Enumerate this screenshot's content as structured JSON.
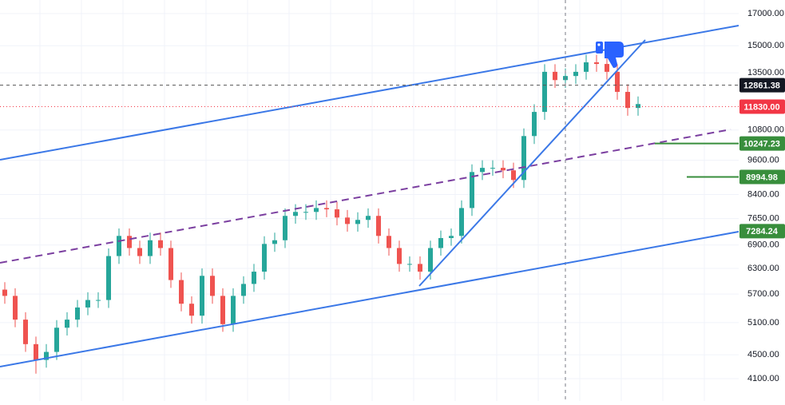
{
  "chart_data": {
    "type": "candlestick",
    "log_scale": true,
    "grid": true,
    "ylim": [
      3758,
      17924
    ],
    "yticks": [
      {
        "value": 17000,
        "label": "17000.00"
      },
      {
        "value": 15000,
        "label": "15000.00"
      },
      {
        "value": 13500,
        "label": "13500.00"
      },
      {
        "value": 10800,
        "label": "10800.00"
      },
      {
        "value": 9600,
        "label": "9600.00"
      },
      {
        "value": 8400,
        "label": "8400.00"
      },
      {
        "value": 7650,
        "label": "7650.00"
      },
      {
        "value": 6900,
        "label": "6900.00"
      },
      {
        "value": 6300,
        "label": "6300.00"
      },
      {
        "value": 5700,
        "label": "5700.00"
      },
      {
        "value": 5100,
        "label": "5100.00"
      },
      {
        "value": 4500,
        "label": "4500.00"
      },
      {
        "value": 4100,
        "label": "4100.00"
      }
    ],
    "up_color": "#26a69a",
    "down_color": "#ef5350",
    "open": [
      5800,
      5660,
      5160,
      4690,
      4410,
      4550,
      5000,
      5160,
      5410,
      5570,
      5570,
      6610,
      7150,
      6820,
      6610,
      7030,
      6820,
      6020,
      5490,
      5240,
      6120,
      5660,
      5070,
      5660,
      5930,
      6220,
      6930,
      7030,
      7730,
      7850,
      7850,
      7970,
      7930,
      7680,
      7490,
      7610,
      7730,
      7150,
      6820,
      6410,
      6410,
      6220,
      6820,
      7090,
      7150,
      7970,
      9170,
      9320,
      9320,
      9230,
      8890,
      10550,
      11590,
      13550,
      13120,
      13330,
      13550,
      14060,
      13970,
      13550,
      12530,
      11770
    ],
    "high": [
      5970,
      5830,
      5310,
      4830,
      4690,
      5150,
      5310,
      5570,
      5740,
      5740,
      6810,
      7360,
      7360,
      7020,
      7240,
      7240,
      7020,
      6200,
      5650,
      6300,
      6300,
      5830,
      5830,
      6110,
      6410,
      7140,
      7240,
      7960,
      8090,
      8090,
      8210,
      8210,
      8170,
      7910,
      7840,
      7960,
      7960,
      7360,
      7020,
      6600,
      6600,
      7020,
      7300,
      7360,
      8210,
      9450,
      9600,
      9600,
      9600,
      9510,
      10870,
      11940,
      13960,
      13960,
      13730,
      13960,
      14480,
      14480,
      14390,
      13960,
      12910,
      12310
    ],
    "low": [
      5490,
      5010,
      4550,
      4180,
      4280,
      4410,
      4850,
      5010,
      5250,
      5400,
      5400,
      6410,
      6620,
      6410,
      6410,
      6620,
      5840,
      5330,
      5080,
      5080,
      5490,
      4920,
      4920,
      5490,
      5750,
      6030,
      6720,
      6820,
      7500,
      7610,
      7610,
      7690,
      7450,
      7270,
      7270,
      7380,
      6940,
      6620,
      6220,
      6220,
      6030,
      6030,
      6620,
      6880,
      6940,
      7730,
      8890,
      9040,
      8950,
      8620,
      8620,
      10230,
      11240,
      12730,
      12730,
      12930,
      13140,
      13550,
      13140,
      12150,
      11420,
      11420
    ],
    "close": [
      5660,
      5160,
      4690,
      4410,
      4550,
      5000,
      5160,
      5410,
      5570,
      5570,
      6610,
      7150,
      6820,
      6610,
      7030,
      6820,
      6020,
      5490,
      5240,
      6120,
      5660,
      5070,
      5660,
      5930,
      6220,
      6930,
      7030,
      7730,
      7850,
      7850,
      7970,
      7930,
      7680,
      7490,
      7610,
      7730,
      7150,
      6820,
      6410,
      6410,
      6220,
      6820,
      7090,
      7150,
      7970,
      9170,
      9320,
      9320,
      9230,
      8890,
      10550,
      11590,
      13550,
      13120,
      13330,
      13550,
      14060,
      13970,
      13550,
      12530,
      11770,
      11950
    ],
    "price_markers": [
      {
        "value": 12861.38,
        "color": "#131722",
        "line": "dashed"
      },
      {
        "value": 11830,
        "label": "11830.00",
        "color": "#f23645",
        "line": "dotted"
      },
      {
        "value": 10247.23,
        "color": "#388e3c",
        "line": "segment"
      },
      {
        "value": 8994.98,
        "color": "#388e3c",
        "line": "segment"
      },
      {
        "value": 7284.24,
        "color": "#388e3c",
        "line": "none"
      }
    ]
  }
}
